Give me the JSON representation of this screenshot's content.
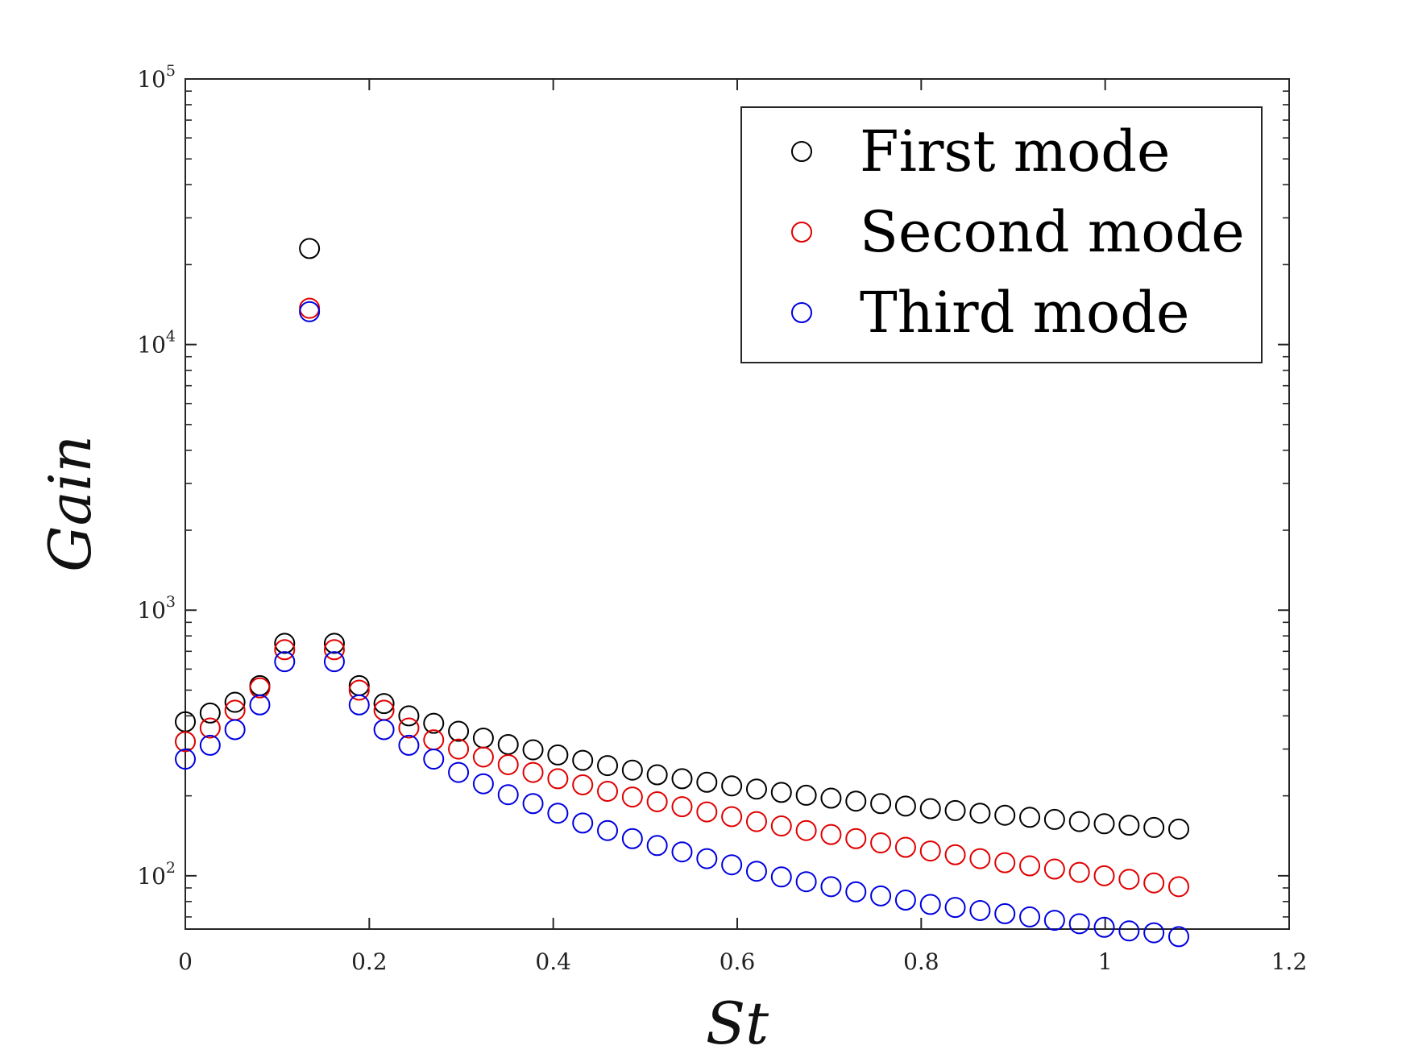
{
  "chart_data": {
    "type": "scatter",
    "title": "",
    "xlabel": "St",
    "ylabel": "Gain",
    "xlim": [
      0,
      1.2
    ],
    "ylim": [
      63,
      100000
    ],
    "y_scale": "log",
    "x_ticks": [
      "0",
      "0.2",
      "0.4",
      "0.6",
      "0.8",
      "1",
      "1.2"
    ],
    "y_ticks": [
      {
        "base": "10",
        "exp": "2"
      },
      {
        "base": "10",
        "exp": "3"
      },
      {
        "base": "10",
        "exp": "4"
      },
      {
        "base": "10",
        "exp": "5"
      }
    ],
    "legend_position": "top-right",
    "marker": "open-circle",
    "x": [
      0,
      0.027,
      0.054,
      0.081,
      0.108,
      0.135,
      0.162,
      0.189,
      0.216,
      0.243,
      0.27,
      0.297,
      0.324,
      0.351,
      0.378,
      0.405,
      0.432,
      0.459,
      0.486,
      0.513,
      0.54,
      0.567,
      0.594,
      0.621,
      0.648,
      0.675,
      0.702,
      0.729,
      0.756,
      0.783,
      0.81,
      0.837,
      0.864,
      0.891,
      0.918,
      0.945,
      0.972,
      0.999,
      1.026,
      1.053,
      1.08
    ],
    "series": [
      {
        "name": "First mode",
        "color": "#000000",
        "values": [
          380,
          410,
          450,
          520,
          750,
          23000,
          750,
          520,
          445,
          400,
          375,
          350,
          330,
          312,
          298,
          285,
          272,
          260,
          250,
          240,
          232,
          225,
          218,
          212,
          206,
          201,
          196,
          191,
          187,
          183,
          179,
          176,
          172,
          169,
          166,
          163,
          160,
          157,
          155,
          152,
          150
        ]
      },
      {
        "name": "Second mode",
        "color": "#e00000",
        "values": [
          320,
          360,
          420,
          510,
          710,
          13700,
          710,
          500,
          420,
          360,
          325,
          300,
          280,
          262,
          245,
          232,
          220,
          208,
          198,
          190,
          182,
          174,
          167,
          160,
          154,
          148,
          143,
          138,
          133,
          128,
          124,
          120,
          116,
          112,
          109,
          106,
          103,
          100,
          97,
          94,
          91
        ]
      },
      {
        "name": "Third mode",
        "color": "#0000e0",
        "values": [
          275,
          310,
          355,
          440,
          640,
          13300,
          640,
          440,
          355,
          310,
          275,
          245,
          222,
          202,
          187,
          172,
          158,
          148,
          138,
          130,
          123,
          116,
          110,
          104,
          99,
          95,
          91,
          87,
          84,
          81,
          78,
          76,
          74,
          72,
          70,
          68,
          66,
          64,
          62,
          61,
          59
        ]
      }
    ]
  }
}
